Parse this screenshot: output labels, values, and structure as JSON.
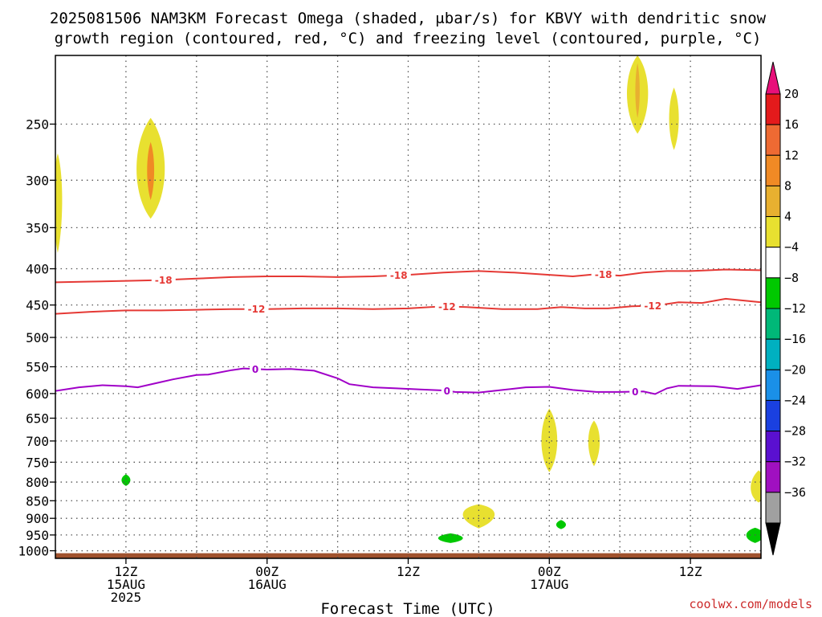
{
  "chart_data": {
    "type": "heatmap",
    "title_line1": "2025081506 NAM3KM Forecast Omega (shaded, μbar/s) for KBVY with dendritic snow",
    "title_line2": "growth region (contoured, red, °C) and freezing level (contoured, purple, °C)",
    "xlabel": "Forecast Time (UTC)",
    "credit": "coolwx.com/models",
    "x_forecast_hours_range": [
      0,
      60
    ],
    "x_ticks": [
      {
        "hour": 6,
        "lines": [
          "12Z",
          "15AUG",
          "2025"
        ]
      },
      {
        "hour": 18,
        "lines": [
          "00Z",
          "16AUG"
        ]
      },
      {
        "hour": 30,
        "lines": [
          "12Z"
        ]
      },
      {
        "hour": 42,
        "lines": [
          "00Z",
          "17AUG"
        ]
      },
      {
        "hour": 54,
        "lines": [
          "12Z"
        ]
      }
    ],
    "y_pressure_range_hpa": [
      200,
      1025
    ],
    "y_ticks": [
      250,
      300,
      350,
      400,
      450,
      500,
      550,
      600,
      650,
      700,
      750,
      800,
      850,
      900,
      950,
      1000
    ],
    "grid": true,
    "colorbar": {
      "levels": [
        "20",
        "16",
        "12",
        "8",
        "4",
        "−4",
        "−8",
        "−12",
        "−16",
        "−20",
        "−24",
        "−28",
        "−32",
        "−36"
      ],
      "colors_top_to_bottom": [
        "#e41a1c",
        "#ee6a33",
        "#f08a25",
        "#e8b030",
        "#e8e030",
        "#ffffff",
        "#00c800",
        "#00b878",
        "#00b0c0",
        "#1a90e8",
        "#1a40e0",
        "#5a10d0",
        "#a010c0",
        "#a0a0a0"
      ],
      "max_arrow_color": "#e8107a",
      "min_arrow_color": "#000000"
    },
    "contour_lines": [
      {
        "name": "-18",
        "color": "#e53935",
        "label": "-18",
        "points": [
          [
            0,
            418
          ],
          [
            3,
            417
          ],
          [
            6,
            416
          ],
          [
            9,
            415
          ],
          [
            12,
            413
          ],
          [
            15,
            411
          ],
          [
            18,
            410
          ],
          [
            21,
            410
          ],
          [
            24,
            411
          ],
          [
            27,
            410
          ],
          [
            30,
            408
          ],
          [
            33,
            405
          ],
          [
            36,
            403
          ],
          [
            39,
            405
          ],
          [
            42,
            408
          ],
          [
            44,
            410
          ],
          [
            46,
            407
          ],
          [
            48,
            409
          ],
          [
            50,
            405
          ],
          [
            52,
            403
          ],
          [
            54,
            403
          ],
          [
            57,
            401
          ],
          [
            60,
            402
          ]
        ],
        "label_hours": [
          9.2,
          29.2,
          46.6
        ]
      },
      {
        "name": "-12",
        "color": "#e53935",
        "label": "-12",
        "points": [
          [
            0,
            463
          ],
          [
            3,
            460
          ],
          [
            6,
            458
          ],
          [
            9,
            458
          ],
          [
            12,
            457
          ],
          [
            15,
            456
          ],
          [
            18,
            456
          ],
          [
            21,
            455
          ],
          [
            24,
            455
          ],
          [
            27,
            456
          ],
          [
            30,
            455
          ],
          [
            33,
            452
          ],
          [
            35,
            453
          ],
          [
            38,
            456
          ],
          [
            41,
            456
          ],
          [
            43,
            453
          ],
          [
            45,
            455
          ],
          [
            47,
            455
          ],
          [
            49,
            452
          ],
          [
            51,
            451
          ],
          [
            53,
            446
          ],
          [
            55,
            447
          ],
          [
            57,
            441
          ],
          [
            60,
            446
          ]
        ],
        "label_hours": [
          17.1,
          33.3,
          50.8
        ]
      },
      {
        "name": "0",
        "color": "#a000c8",
        "label": "0",
        "points": [
          [
            0,
            595
          ],
          [
            2,
            588
          ],
          [
            4,
            584
          ],
          [
            6,
            586
          ],
          [
            7,
            588
          ],
          [
            9,
            578
          ],
          [
            10,
            573
          ],
          [
            12,
            565
          ],
          [
            13,
            564
          ],
          [
            15,
            556
          ],
          [
            16,
            553
          ],
          [
            18,
            555
          ],
          [
            20,
            554
          ],
          [
            22,
            557
          ],
          [
            24,
            571
          ],
          [
            25,
            582
          ],
          [
            27,
            588
          ],
          [
            29,
            590
          ],
          [
            31,
            592
          ],
          [
            33,
            594
          ],
          [
            34,
            597
          ],
          [
            36,
            598
          ],
          [
            38,
            593
          ],
          [
            40,
            588
          ],
          [
            42,
            587
          ],
          [
            44,
            593
          ],
          [
            46,
            597
          ],
          [
            48,
            597
          ],
          [
            50,
            596
          ],
          [
            51,
            601
          ],
          [
            52,
            590
          ],
          [
            53,
            585
          ],
          [
            56,
            586
          ],
          [
            58,
            591
          ],
          [
            60,
            584
          ]
        ],
        "label_hours": [
          17,
          33.3,
          49.3
        ]
      }
    ],
    "omega_shaded_regions": [
      {
        "category": "4 to 8",
        "color": "#e8e030",
        "center": [
          0.2,
          315
        ],
        "half_width_h": 0.5,
        "p_top": 275,
        "p_bottom": 380
      },
      {
        "category": "4 to 8",
        "color": "#e8e030",
        "center": [
          8.1,
          290
        ],
        "half_width_h": 1.6,
        "p_top": 245,
        "p_bottom": 340
      },
      {
        "category": "12 to 16",
        "color": "#f08a25",
        "center": [
          8.1,
          290
        ],
        "half_width_h": 0.4,
        "p_top": 265,
        "p_bottom": 320
      },
      {
        "category": "4 to 8",
        "color": "#e8e030",
        "center": [
          49.5,
          225
        ],
        "half_width_h": 1.2,
        "p_top": 200,
        "p_bottom": 258
      },
      {
        "category": "8 to 12",
        "color": "#e8b030",
        "center": [
          49.5,
          225
        ],
        "half_width_h": 0.25,
        "p_top": 205,
        "p_bottom": 245
      },
      {
        "category": "4 to 8",
        "color": "#e8e030",
        "center": [
          52.6,
          245
        ],
        "half_width_h": 0.55,
        "p_top": 222,
        "p_bottom": 272
      },
      {
        "category": "4 to 8",
        "color": "#e8e030",
        "center": [
          42.0,
          700
        ],
        "half_width_h": 0.9,
        "p_top": 630,
        "p_bottom": 775
      },
      {
        "category": "4 to 8",
        "color": "#e8e030",
        "center": [
          45.8,
          695
        ],
        "half_width_h": 0.65,
        "p_top": 655,
        "p_bottom": 760
      },
      {
        "category": "4 to 8",
        "color": "#e8e030",
        "center": [
          36.0,
          880
        ],
        "half_width_h": 1.8,
        "p_top": 860,
        "p_bottom": 930
      },
      {
        "category": "4 to 8",
        "color": "#e8e030",
        "center": [
          59.8,
          820
        ],
        "half_width_h": 0.9,
        "p_top": 770,
        "p_bottom": 855
      },
      {
        "category": "-8 to -4",
        "color": "#00c800",
        "center": [
          6.0,
          795
        ],
        "half_width_h": 0.5,
        "p_top": 780,
        "p_bottom": 810
      },
      {
        "category": "-8 to -4",
        "color": "#00c800",
        "center": [
          33.6,
          960
        ],
        "half_width_h": 1.4,
        "p_top": 945,
        "p_bottom": 975
      },
      {
        "category": "-8 to -4",
        "color": "#00c800",
        "center": [
          43.0,
          920
        ],
        "half_width_h": 0.55,
        "p_top": 905,
        "p_bottom": 932
      },
      {
        "category": "-8 to -4",
        "color": "#00c800",
        "center": [
          59.5,
          950
        ],
        "half_width_h": 1.0,
        "p_top": 928,
        "p_bottom": 975
      }
    ],
    "ground": {
      "color": "#a0522d",
      "p_top": 1008,
      "p_bottom": 1025
    }
  }
}
